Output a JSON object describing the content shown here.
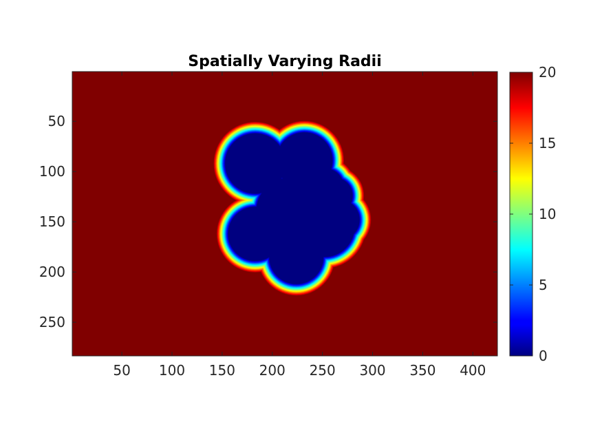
{
  "chart_data": {
    "type": "heatmap",
    "title": "Spatially Varying Radii",
    "xlabel": "",
    "ylabel": "",
    "xlim": [
      0.5,
      424.5
    ],
    "ylim": [
      0.5,
      283.5
    ],
    "y_reversed": true,
    "x_ticks": [
      50,
      100,
      150,
      200,
      250,
      300,
      350,
      400
    ],
    "y_ticks": [
      50,
      100,
      150,
      200,
      250
    ],
    "colormap": "jet",
    "colorbar": {
      "range": [
        0,
        20
      ],
      "ticks": [
        0,
        5,
        10,
        15,
        20
      ]
    },
    "background_value": 20,
    "core_value": 0,
    "transition_width": 12,
    "region_lobes": [
      {
        "cx": 183,
        "cy": 92,
        "r": 30,
        "value": 0
      },
      {
        "cx": 232,
        "cy": 89,
        "r": 28,
        "value": 0
      },
      {
        "cx": 253,
        "cy": 115,
        "r": 18,
        "value": 0
      },
      {
        "cx": 262,
        "cy": 124,
        "r": 18,
        "value": 0
      },
      {
        "cx": 267,
        "cy": 148,
        "r": 20,
        "value": 0
      },
      {
        "cx": 252,
        "cy": 155,
        "r": 30,
        "value": 0
      },
      {
        "cx": 183,
        "cy": 162,
        "r": 27,
        "value": 0
      },
      {
        "cx": 224,
        "cy": 185,
        "r": 27,
        "value": 0
      },
      {
        "cx": 218,
        "cy": 140,
        "r": 34,
        "value": 0
      }
    ]
  }
}
